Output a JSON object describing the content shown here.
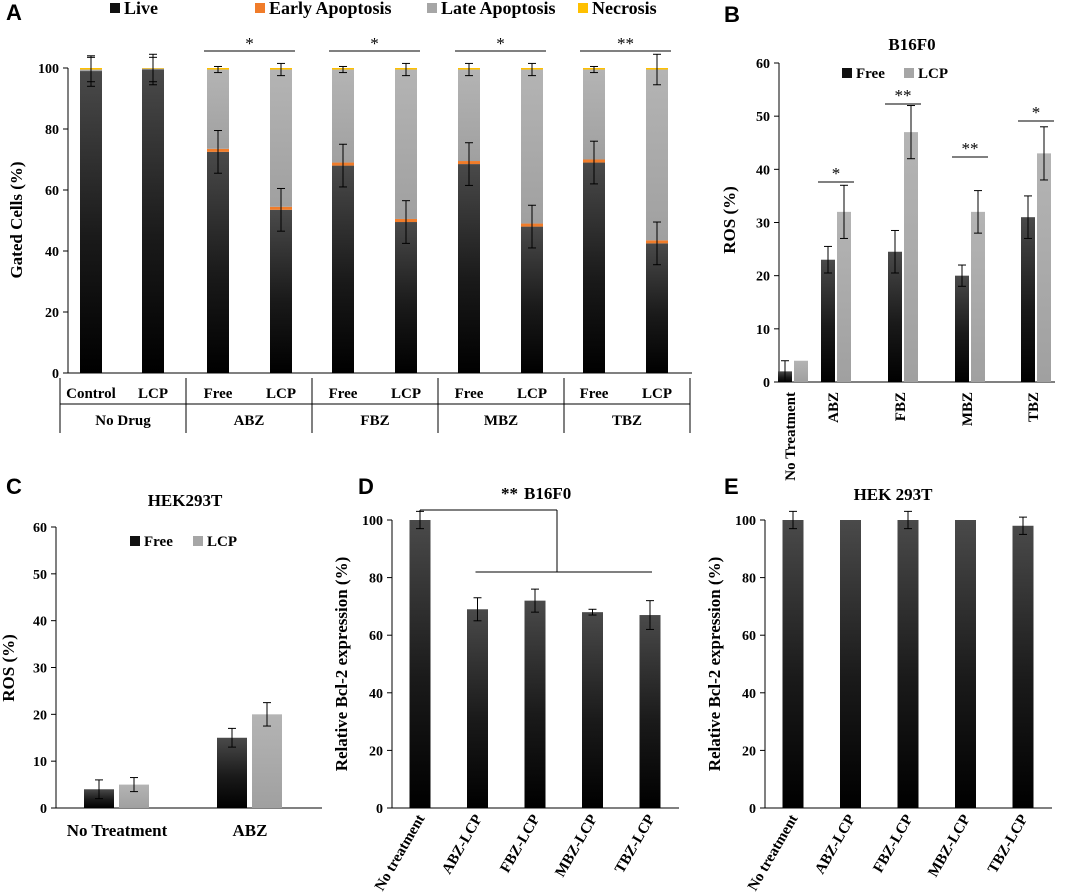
{
  "colors": {
    "free": "#111111",
    "lcp": "#a6a6a6",
    "early_apoptosis": "#f07c2a",
    "late_apoptosis": "#a6a6a6",
    "necrosis": "#ffc000",
    "axis": "#000000"
  },
  "chart_data": [
    {
      "panel": "A",
      "type": "bar",
      "stacked": true,
      "title": "",
      "ylabel": "Gated Cells (%)",
      "ylim": [
        0,
        100
      ],
      "yticks": [
        0,
        20,
        40,
        60,
        80,
        100
      ],
      "legend": [
        "Live",
        "Early Apoptosis",
        "Late Apoptosis",
        "Necrosis"
      ],
      "legend_placement": "top",
      "groups": [
        "No Drug",
        "ABZ",
        "FBZ",
        "MBZ",
        "TBZ"
      ],
      "categories": [
        "Control",
        "LCP",
        "Free",
        "LCP",
        "Free",
        "LCP",
        "Free",
        "LCP",
        "Free",
        "LCP"
      ],
      "series": [
        {
          "name": "Live",
          "values": [
            99,
            99.5,
            72.5,
            53.5,
            68,
            49.5,
            68.5,
            48,
            69,
            42.5
          ]
        },
        {
          "name": "Early Apoptosis",
          "values": [
            0,
            0,
            1,
            1,
            1,
            1,
            1,
            1,
            1,
            1
          ]
        },
        {
          "name": "Late Apoptosis",
          "values": [
            0.5,
            0.3,
            26,
            45,
            30.5,
            49,
            30,
            50.5,
            29.5,
            56
          ]
        },
        {
          "name": "Necrosis",
          "values": [
            0.5,
            0.2,
            0.5,
            0.5,
            0.5,
            0.5,
            0.5,
            0.5,
            0.5,
            0.5
          ]
        }
      ],
      "live_error": [
        5,
        5,
        7,
        7,
        7,
        7,
        7,
        7,
        7,
        7
      ],
      "total_error": [
        4,
        4,
        1,
        2,
        1,
        2,
        2,
        2,
        1,
        5
      ],
      "significance": [
        {
          "group": "ABZ",
          "label": "*"
        },
        {
          "group": "FBZ",
          "label": "*"
        },
        {
          "group": "MBZ",
          "label": "*"
        },
        {
          "group": "TBZ",
          "label": "**"
        }
      ]
    },
    {
      "panel": "B",
      "type": "bar",
      "title": "B16F0",
      "ylabel": "ROS (%)",
      "ylim": [
        0,
        60
      ],
      "yticks": [
        0,
        10,
        20,
        30,
        40,
        50,
        60
      ],
      "categories": [
        "No Treatment",
        "ABZ",
        "FBZ",
        "MBZ",
        "TBZ"
      ],
      "legend_placement": "top-left",
      "series": [
        {
          "name": "Free",
          "values": [
            2,
            23,
            24.5,
            20,
            31
          ],
          "errors": [
            2,
            2.5,
            4,
            2,
            4
          ]
        },
        {
          "name": "LCP",
          "values": [
            4,
            32,
            47,
            32,
            43
          ],
          "errors": [
            0,
            5,
            5,
            4,
            5
          ]
        }
      ],
      "significance": [
        {
          "category": "ABZ",
          "label": "*"
        },
        {
          "category": "FBZ",
          "label": "**"
        },
        {
          "category": "MBZ",
          "label": "**"
        },
        {
          "category": "TBZ",
          "label": "*"
        }
      ]
    },
    {
      "panel": "C",
      "type": "bar",
      "title": "HEK293T",
      "ylabel": "ROS (%)",
      "ylim": [
        0,
        60
      ],
      "yticks": [
        0,
        10,
        20,
        30,
        40,
        50,
        60
      ],
      "categories": [
        "No Treatment",
        "ABZ"
      ],
      "legend_placement": "top-right",
      "series": [
        {
          "name": "Free",
          "values": [
            4,
            15
          ],
          "errors": [
            2,
            2
          ]
        },
        {
          "name": "LCP",
          "values": [
            5,
            20
          ],
          "errors": [
            1.5,
            2.5
          ]
        }
      ]
    },
    {
      "panel": "D",
      "type": "bar",
      "title": "B16F0",
      "sig_label": "**",
      "ylabel": "Relative Bcl-2 expression (%)",
      "ylim": [
        0,
        100
      ],
      "yticks": [
        0,
        20,
        40,
        60,
        80,
        100
      ],
      "categories": [
        "No treatment",
        "ABZ-LCP",
        "FBZ-LCP",
        "MBZ-LCP",
        "TBZ-LCP"
      ],
      "values": [
        100,
        69,
        72,
        68,
        67
      ],
      "errors": [
        3,
        4,
        4,
        1,
        5
      ]
    },
    {
      "panel": "E",
      "type": "bar",
      "title": "HEK 293T",
      "ylabel": "Relative Bcl-2 expression (%)",
      "ylim": [
        0,
        100
      ],
      "yticks": [
        0,
        20,
        40,
        60,
        80,
        100
      ],
      "categories": [
        "No treatment",
        "ABZ-LCP",
        "FBZ-LCP",
        "MBZ-LCP",
        "TBZ-LCP"
      ],
      "values": [
        100,
        100,
        100,
        100,
        98
      ],
      "errors": [
        3,
        0,
        3,
        0,
        3
      ]
    }
  ]
}
